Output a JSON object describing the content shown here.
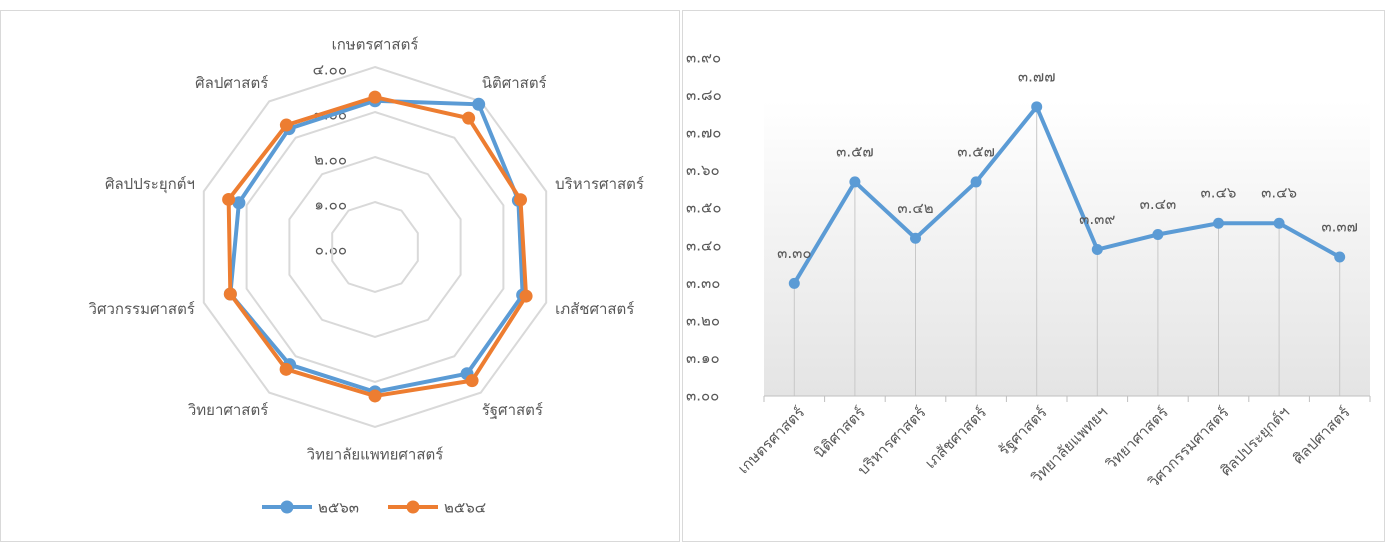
{
  "chart_data": [
    {
      "type": "radar",
      "categories": [
        "เกษตรศาสตร์",
        "นิติศาสตร์",
        "บริหารศาสตร์",
        "เภสัชศาสตร์",
        "รัฐศาสตร์",
        "วิทยาลัยแพทยศาสตร์",
        "วิทยาศาสตร์",
        "วิศวกรรมศาสตร์",
        "ศิลปประยุกต์ฯ",
        "ศิลปศาสตร์"
      ],
      "series": [
        {
          "name": "๒๕๖๓",
          "color": "#5b9bd5",
          "values": [
            3.25,
            3.92,
            3.35,
            3.45,
            3.48,
            3.22,
            3.23,
            3.38,
            3.18,
            3.25
          ]
        },
        {
          "name": "๒๕๖๔",
          "color": "#ed7d31",
          "values": [
            3.33,
            3.54,
            3.4,
            3.53,
            3.67,
            3.31,
            3.36,
            3.38,
            3.42,
            3.35
          ]
        }
      ],
      "rlim": [
        0,
        4
      ],
      "rticks": [
        {
          "value": 0,
          "label": "๐.๐๐"
        },
        {
          "value": 1,
          "label": "๑.๐๐"
        },
        {
          "value": 2,
          "label": "๒.๐๐"
        },
        {
          "value": 3,
          "label": "๓.๐๐"
        },
        {
          "value": 4,
          "label": "๔.๐๐"
        }
      ],
      "legend": "bottom"
    },
    {
      "type": "line",
      "categories": [
        "เกษตรศาสตร์",
        "นิติศาสตร์",
        "บริหารศาสตร์",
        "เภสัชศาสตร์",
        "รัฐศาสตร์",
        "วิทยาลัยแพทยฯ",
        "วิทยาศาสตร์",
        "วิศวกรรมศาสตร์",
        "ศิลปประยุกต์ฯ",
        "ศิลปศาสตร์"
      ],
      "values": [
        3.3,
        3.57,
        3.42,
        3.57,
        3.77,
        3.39,
        3.43,
        3.46,
        3.46,
        3.37
      ],
      "value_labels": [
        "๓.๓๐",
        "๓.๕๗",
        "๓.๔๒",
        "๓.๕๗",
        "๓.๗๗",
        "๓.๓๙",
        "๓.๔๓",
        "๓.๔๖",
        "๓.๔๖",
        "๓.๓๗"
      ],
      "color": "#5b9bd5",
      "ylim": [
        3.0,
        3.9
      ],
      "yticks": [
        {
          "value": 3.0,
          "label": "๓.๐๐"
        },
        {
          "value": 3.1,
          "label": "๓.๑๐"
        },
        {
          "value": 3.2,
          "label": "๓.๒๐"
        },
        {
          "value": 3.3,
          "label": "๓.๓๐"
        },
        {
          "value": 3.4,
          "label": "๓.๔๐"
        },
        {
          "value": 3.5,
          "label": "๓.๕๐"
        },
        {
          "value": 3.6,
          "label": "๓.๖๐"
        },
        {
          "value": 3.7,
          "label": "๓.๗๐"
        },
        {
          "value": 3.8,
          "label": "๓.๘๐"
        },
        {
          "value": 3.9,
          "label": "๓.๙๐"
        }
      ]
    }
  ]
}
